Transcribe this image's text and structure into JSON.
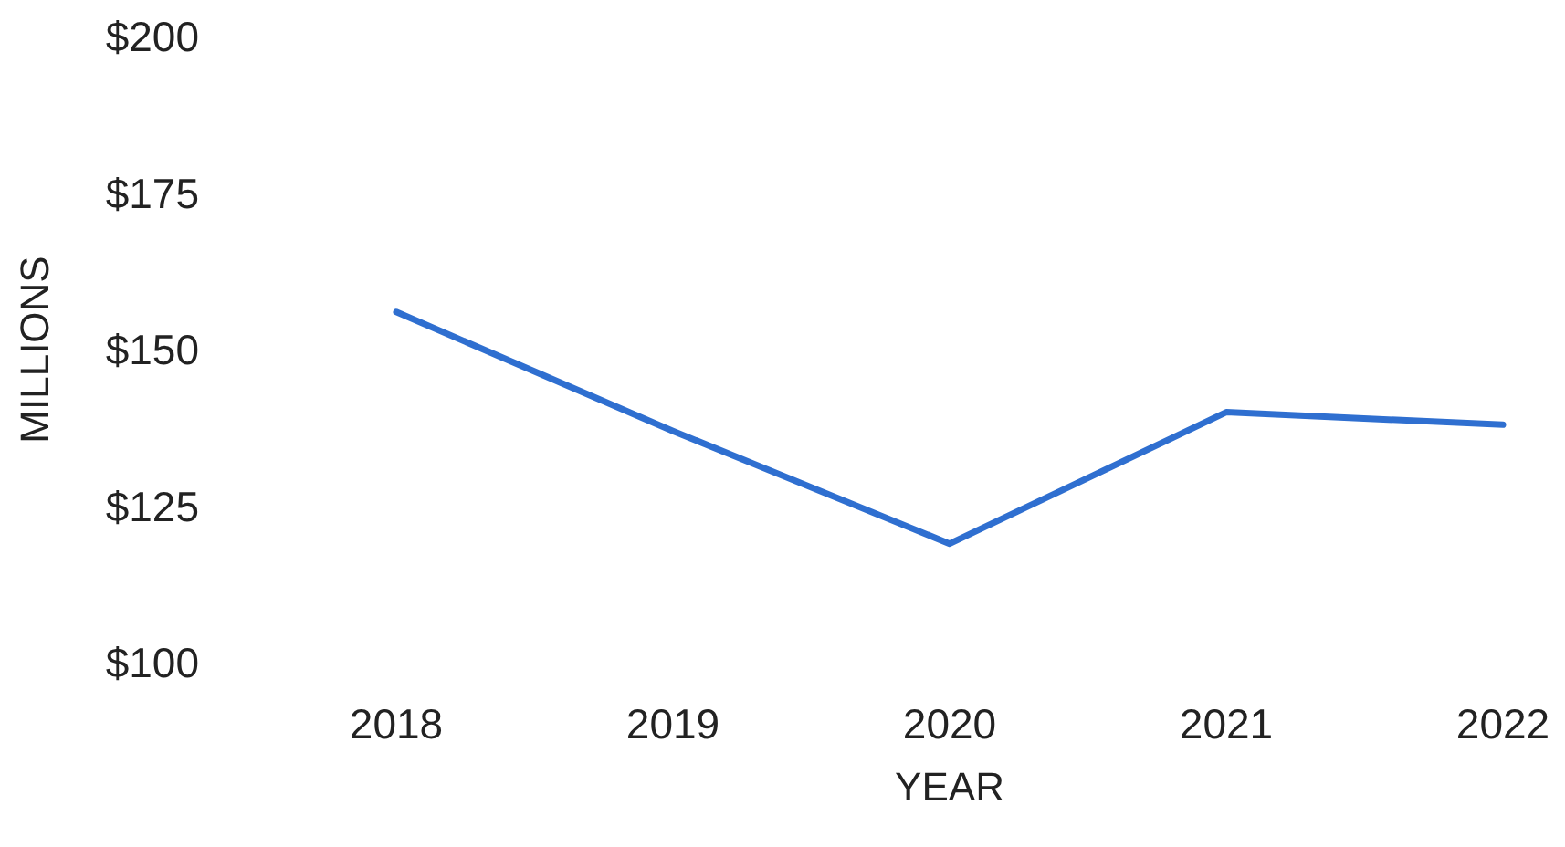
{
  "chart_data": {
    "type": "line",
    "xlabel": "YEAR",
    "ylabel": "MILLIONS",
    "categories": [
      "2018",
      "2019",
      "2020",
      "2021",
      "2022"
    ],
    "series": [
      {
        "color": "#2f6fd0",
        "values": [
          156,
          137,
          119,
          140,
          138
        ]
      }
    ],
    "ylim": [
      100,
      200
    ],
    "yticks": [
      {
        "value": 100,
        "label": "$100"
      },
      {
        "value": 125,
        "label": "$125"
      },
      {
        "value": 150,
        "label": "$150"
      },
      {
        "value": 175,
        "label": "$175"
      },
      {
        "value": 200,
        "label": "$200"
      }
    ],
    "grid": false,
    "marker": "none",
    "line_style": "solid"
  }
}
